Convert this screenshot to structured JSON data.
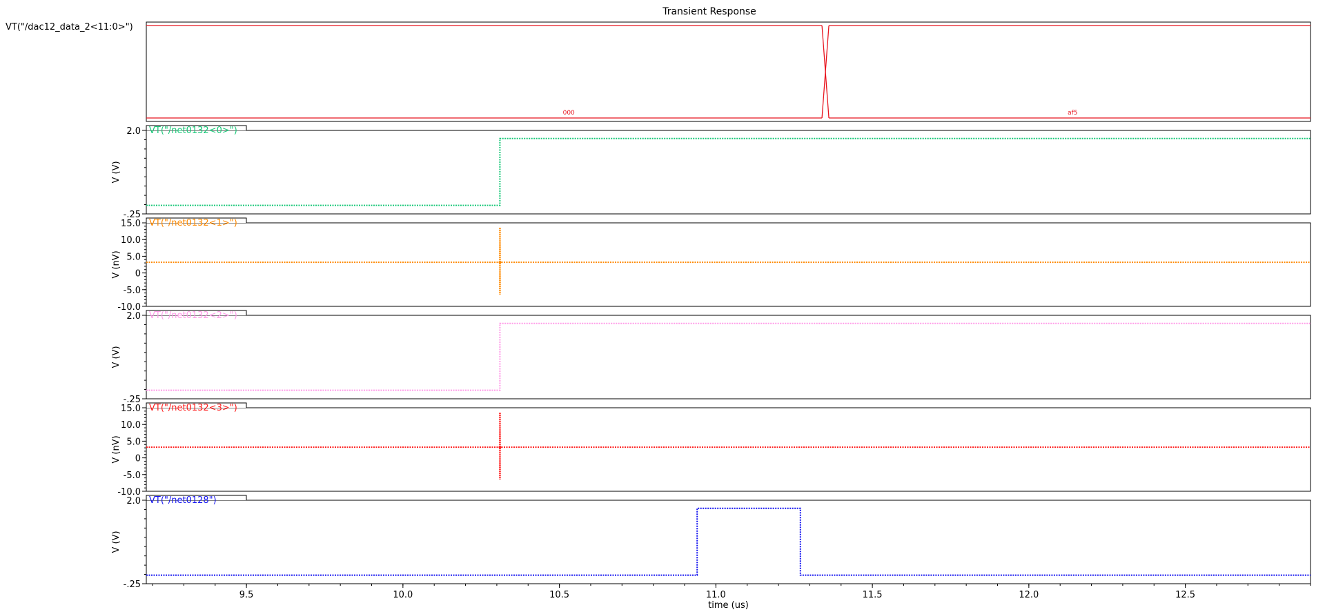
{
  "window": {
    "title": "Transient Response"
  },
  "chart_data": [
    {
      "type": "bus",
      "title": "Transient Response",
      "label": "VT(\"/dac12_data_2<11:0>\")",
      "color": "#e8141e",
      "transitions": [
        11.35
      ],
      "values": [
        {
          "x": 10.53,
          "text": "000"
        },
        {
          "x": 12.14,
          "text": "af5"
        }
      ],
      "xlim": [
        9.18,
        12.9
      ]
    },
    {
      "type": "line",
      "label": "VT(\"/net0132<0>\")",
      "color": "#18c878",
      "ylabel": "V (V)",
      "yticks": [
        "2.0",
        "-.25"
      ],
      "ylim": [
        -0.25,
        2.0
      ],
      "low": -0.02,
      "high": 1.78,
      "x": [
        9.18,
        10.31,
        10.31,
        12.9
      ],
      "y": [
        -0.02,
        -0.02,
        1.78,
        1.78
      ]
    },
    {
      "type": "line",
      "label": "VT(\"/net0132<1>\")",
      "color": "#ff8a00",
      "ylabel": "V (nV)",
      "yticks": [
        "15.0",
        "10.0",
        "5.0",
        "0",
        "-5.0",
        "-10.0"
      ],
      "ylim": [
        -10.0,
        15.0
      ],
      "level": 3.2,
      "glitch": {
        "x": 10.31,
        "max": 13.5,
        "min": -6.5
      }
    },
    {
      "type": "line",
      "label": "VT(\"/net0132<2>\")",
      "color": "#ff9be8",
      "ylabel": "V (V)",
      "yticks": [
        "2.0",
        "-.25"
      ],
      "ylim": [
        -0.25,
        2.0
      ],
      "x": [
        9.18,
        10.31,
        10.31,
        12.9
      ],
      "y": [
        -0.02,
        -0.02,
        1.78,
        1.78
      ]
    },
    {
      "type": "line",
      "label": "VT(\"/net0132<3>\")",
      "color": "#ff1e1e",
      "ylabel": "V (nV)",
      "yticks": [
        "15.0",
        "10.0",
        "5.0",
        "0",
        "-5.0",
        "-10.0"
      ],
      "ylim": [
        -10.0,
        15.0
      ],
      "level": 3.2,
      "glitch": {
        "x": 10.31,
        "max": 13.5,
        "min": -6.5
      }
    },
    {
      "type": "line",
      "label": "VT(\"/net0128\")",
      "color": "#1414f0",
      "ylabel": "V (V)",
      "yticks": [
        "2.0",
        "-.25"
      ],
      "ylim": [
        -0.25,
        2.0
      ],
      "x": [
        9.18,
        10.94,
        10.94,
        11.27,
        11.27,
        12.9
      ],
      "y": [
        -0.02,
        -0.02,
        1.78,
        1.78,
        -0.02,
        -0.02
      ]
    }
  ],
  "xaxis": {
    "label": "time (us)",
    "ticks": [
      9.5,
      10.0,
      10.5,
      11.0,
      11.5,
      12.0,
      12.5
    ],
    "tick_labels": [
      "9.5",
      "10.0",
      "10.5",
      "11.0",
      "11.5",
      "12.0",
      "12.5"
    ],
    "xlim": [
      9.18,
      12.9
    ]
  }
}
